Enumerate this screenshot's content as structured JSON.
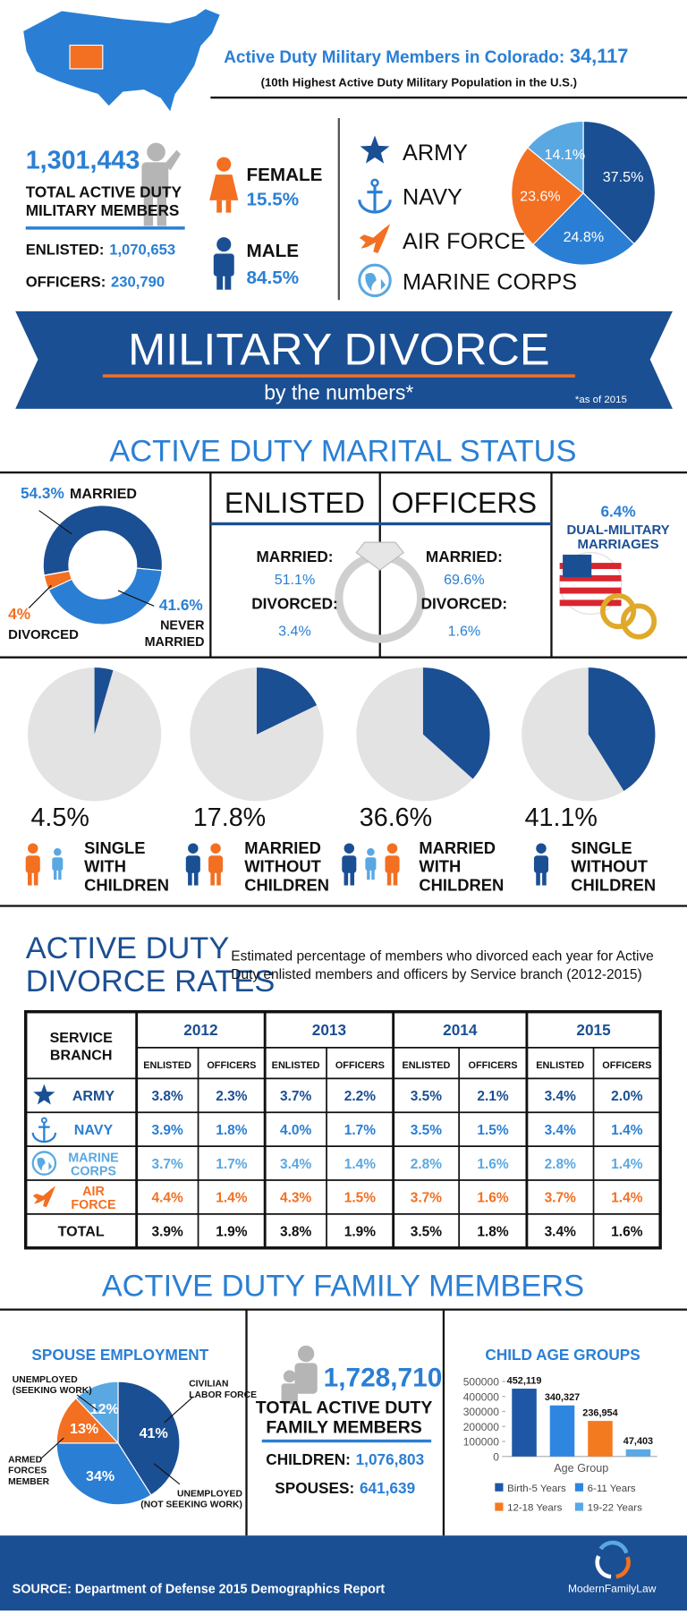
{
  "header": {
    "title": "Active Duty Military Members in Colorado:",
    "count": "34,117",
    "subtitle": "(10th Highest Active Duty Military Population in the U.S.)"
  },
  "totals": {
    "total": "1,301,443",
    "total_label": [
      "TOTAL ACTIVE DUTY",
      "MILITARY MEMBERS"
    ],
    "enlisted_label": "ENLISTED:",
    "enlisted": "1,070,653",
    "officers_label": "OFFICERS:",
    "officers": "230,790",
    "female_label": "FEMALE",
    "female": "15.5%",
    "male_label": "MALE",
    "male": "84.5%"
  },
  "banner": {
    "title": "MILITARY DIVORCE",
    "subtitle": "by the numbers*",
    "note": "*as of 2015"
  },
  "marital": {
    "title": "ACTIVE DUTY MARITAL STATUS",
    "enlisted": {
      "heading": "ENLISTED",
      "married_label": "MARRIED:",
      "married": "51.1%",
      "divorced_label": "DIVORCED:",
      "divorced": "3.4%"
    },
    "officers": {
      "heading": "OFFICERS",
      "married_label": "MARRIED:",
      "married": "69.6%",
      "divorced_label": "DIVORCED:",
      "divorced": "1.6%"
    },
    "dual": {
      "value": "6.4%",
      "label": [
        "DUAL-MILITARY",
        "MARRIAGES"
      ]
    }
  },
  "divorce_rates": {
    "title": [
      "ACTIVE DUTY",
      "DIVORCE RATES"
    ],
    "description": [
      "Estimated percentage of members who divorced each year for Active",
      "Duty enlisted members and officers by Service branch (2012-2015)"
    ],
    "table": {
      "corner": [
        "SERVICE",
        "BRANCH"
      ],
      "years": [
        "2012",
        "2013",
        "2014",
        "2015"
      ],
      "columns": [
        "ENLISTED",
        "OFFICERS"
      ],
      "rows": [
        {
          "name": [
            "ARMY"
          ],
          "icon": "star",
          "color": "#1b4f93",
          "values": [
            "3.8%",
            "2.3%",
            "3.7%",
            "2.2%",
            "3.5%",
            "2.1%",
            "3.4%",
            "2.0%"
          ]
        },
        {
          "name": [
            "NAVY"
          ],
          "icon": "anchor",
          "color": "#2a7fd4",
          "values": [
            "3.9%",
            "1.8%",
            "4.0%",
            "1.7%",
            "3.5%",
            "1.5%",
            "3.4%",
            "1.4%"
          ]
        },
        {
          "name": [
            "MARINE",
            "CORPS"
          ],
          "icon": "globe",
          "color": "#5aa8e2",
          "values": [
            "3.7%",
            "1.7%",
            "3.4%",
            "1.4%",
            "2.8%",
            "1.6%",
            "2.8%",
            "1.4%"
          ]
        },
        {
          "name": [
            "AIR",
            "FORCE"
          ],
          "icon": "plane",
          "color": "#f36f21",
          "values": [
            "4.4%",
            "1.4%",
            "4.3%",
            "1.5%",
            "3.7%",
            "1.6%",
            "3.7%",
            "1.4%"
          ]
        },
        {
          "name": [
            "TOTAL"
          ],
          "color": "#111111",
          "values": [
            "3.9%",
            "1.9%",
            "3.8%",
            "1.9%",
            "3.5%",
            "1.8%",
            "3.4%",
            "1.6%"
          ]
        }
      ]
    }
  },
  "family": {
    "title": "ACTIVE DUTY FAMILY MEMBERS",
    "total": "1,728,710",
    "total_label": [
      "TOTAL ACTIVE DUTY",
      "FAMILY MEMBERS"
    ],
    "children_label": "CHILDREN:",
    "children": "1,076,803",
    "spouses_label": "SPOUSES:",
    "spouses": "641,639"
  },
  "footer": {
    "source": "SOURCE: Department of Defense 2015 Demographics Report",
    "brand": "ModernFamilyLaw"
  },
  "chart_data": [
    {
      "type": "pie",
      "categories": [
        "ARMY",
        "NAVY",
        "AIR FORCE",
        "MARINE CORPS"
      ],
      "icons": [
        "star",
        "anchor",
        "plane",
        "globe"
      ],
      "values": [
        37.5,
        24.8,
        23.6,
        14.1
      ],
      "value_labels": [
        "37.5%",
        "24.8%",
        "23.6%",
        "14.1%"
      ],
      "colors": [
        "#1b4f93",
        "#2a7fd4",
        "#f36f21",
        "#5aa8e2"
      ]
    },
    {
      "type": "donut",
      "categories": [
        [
          "MARRIED"
        ],
        [
          "NEVER",
          "MARRIED"
        ],
        [
          "DIVORCED"
        ]
      ],
      "values": [
        54.3,
        41.6,
        4
      ],
      "value_labels": [
        "54.3%",
        "41.6%",
        "4%"
      ],
      "colors": [
        "#1b4f93",
        "#2a7fd4",
        "#f36f21"
      ]
    },
    {
      "type": "pie-set",
      "categories": [
        [
          "SINGLE",
          "WITH",
          "CHILDREN"
        ],
        [
          "MARRIED",
          "WITHOUT",
          "CHILDREN"
        ],
        [
          "MARRIED",
          "WITH",
          "CHILDREN"
        ],
        [
          "SINGLE",
          "WITHOUT",
          "CHILDREN"
        ]
      ],
      "values": [
        4.5,
        17.8,
        36.6,
        41.1
      ],
      "value_labels": [
        "4.5%",
        "17.8%",
        "36.6%",
        "41.1%"
      ],
      "color": "#1b4f93",
      "background_color": "#e3e3e3"
    },
    {
      "type": "pie",
      "title": "SPOUSE EMPLOYMENT",
      "categories": [
        [
          "CIVILIAN",
          "LABOR FORCE"
        ],
        [
          "UNEMPLOYED",
          "(NOT SEEKING WORK)"
        ],
        [
          "ARMED",
          "FORCES",
          "MEMBER"
        ],
        [
          "UNEMPLOYED",
          "(SEEKING WORK)"
        ]
      ],
      "values": [
        41,
        34,
        13,
        12
      ],
      "value_labels": [
        "41%",
        "34%",
        "13%",
        "12%"
      ],
      "colors": [
        "#1b4f93",
        "#2a7fd4",
        "#f36f21",
        "#5aa8e2"
      ]
    },
    {
      "type": "bar",
      "title": "CHILD AGE GROUPS",
      "x_label": "Age Group",
      "categories": [
        "Birth-5 Years",
        "6-11 Years",
        "12-18 Years",
        "19-22 Years"
      ],
      "values": [
        452119,
        340327,
        236954,
        47403
      ],
      "value_labels": [
        "452,119",
        "340,327",
        "236,954",
        "47,403"
      ],
      "colors": [
        "#1f57a6",
        "#2f86e0",
        "#f47a20",
        "#5aa9e6"
      ],
      "ylim": [
        0,
        500000
      ],
      "yticks": [
        0,
        100000,
        200000,
        300000,
        400000,
        500000
      ]
    }
  ]
}
